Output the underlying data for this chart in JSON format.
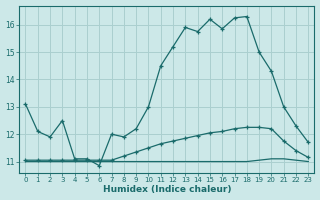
{
  "xlabel": "Humidex (Indice chaleur)",
  "bg_color": "#cce8e8",
  "grid_color": "#aacfcf",
  "line_color": "#1a6b6b",
  "x_min": -0.5,
  "x_max": 23.5,
  "y_min": 10.6,
  "y_max": 16.7,
  "yticks": [
    11,
    12,
    13,
    14,
    15,
    16
  ],
  "xticks": [
    0,
    1,
    2,
    3,
    4,
    5,
    6,
    7,
    8,
    9,
    10,
    11,
    12,
    13,
    14,
    15,
    16,
    17,
    18,
    19,
    20,
    21,
    22,
    23
  ],
  "line1_x": [
    0,
    1,
    2,
    3,
    4,
    5,
    6,
    7,
    8,
    9,
    10,
    11,
    12,
    13,
    14,
    15,
    16,
    17,
    18,
    19,
    20,
    21,
    22,
    23
  ],
  "line1_y": [
    13.1,
    12.1,
    11.9,
    12.5,
    11.1,
    11.1,
    10.85,
    12.0,
    11.9,
    12.2,
    13.0,
    14.5,
    15.2,
    15.9,
    15.75,
    16.2,
    15.85,
    16.25,
    16.3,
    15.0,
    14.3,
    13.0,
    12.3,
    11.7
  ],
  "line2_x": [
    0,
    1,
    2,
    3,
    4,
    5,
    6,
    7,
    8,
    9,
    10,
    11,
    12,
    13,
    14,
    15,
    16,
    17,
    18,
    19,
    20,
    21,
    22,
    23
  ],
  "line2_y": [
    11.05,
    11.05,
    11.05,
    11.05,
    11.05,
    11.05,
    11.05,
    11.05,
    11.2,
    11.35,
    11.5,
    11.65,
    11.75,
    11.85,
    11.95,
    12.05,
    12.1,
    12.2,
    12.25,
    12.25,
    12.2,
    11.75,
    11.4,
    11.15
  ],
  "line3_x": [
    0,
    1,
    2,
    3,
    4,
    5,
    6,
    7,
    8,
    9,
    10,
    11,
    12,
    13,
    14,
    15,
    16,
    17,
    18,
    19,
    20,
    21,
    22,
    23
  ],
  "line3_y": [
    11.0,
    11.0,
    11.0,
    11.0,
    11.0,
    11.0,
    11.0,
    11.0,
    11.0,
    11.0,
    11.0,
    11.0,
    11.0,
    11.0,
    11.0,
    11.0,
    11.0,
    11.0,
    11.0,
    11.05,
    11.1,
    11.1,
    11.05,
    11.0
  ]
}
